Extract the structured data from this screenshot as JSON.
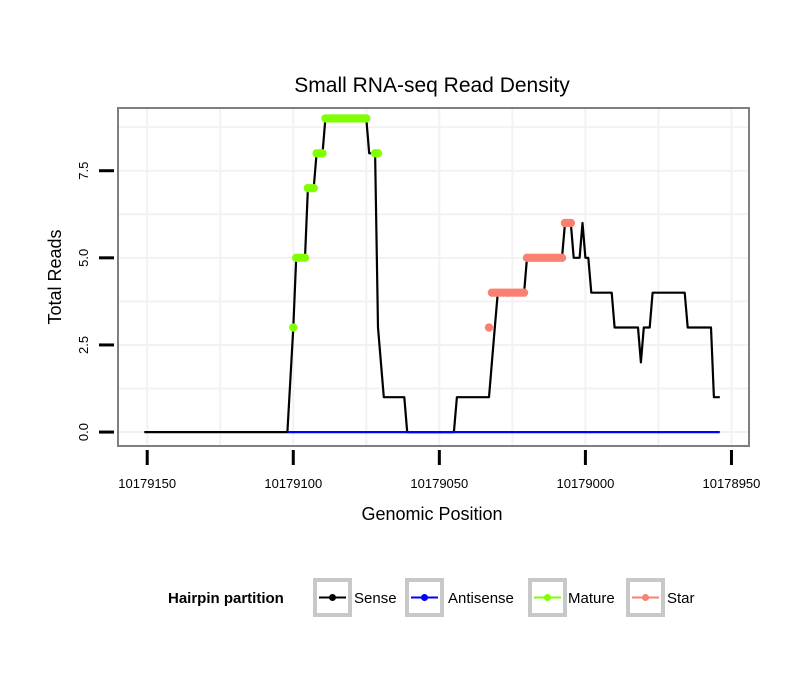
{
  "chart_data": {
    "type": "line",
    "title": "Small RNA-seq Read Density",
    "xlabel": "Genomic Position",
    "ylabel": "Total Reads",
    "x_reversed": true,
    "xlim": [
      10179160,
      10178944
    ],
    "ylim": [
      -0.4,
      9.3
    ],
    "xticks": [
      10179150,
      10179100,
      10179050,
      10179000,
      10178950
    ],
    "xtick_labels": [
      "10179150",
      "10179100",
      "10179050",
      "10179000",
      "10178950"
    ],
    "yticks": [
      0,
      2.5,
      5,
      7.5
    ],
    "ytick_labels": [
      "0.0",
      "2.5",
      "5.0",
      "7.5"
    ],
    "grid": true,
    "legend": {
      "title": "Hairpin partition",
      "position": "bottom",
      "entries": [
        "Sense",
        "Antisense",
        "Mature",
        "Star"
      ]
    },
    "colors": {
      "Sense": "#000000",
      "Antisense": "#0000ff",
      "Mature": "#7fff00",
      "Star": "#fa8072"
    },
    "series": [
      {
        "name": "Sense",
        "style": "line",
        "points": [
          [
            10179151,
            0
          ],
          [
            10179102,
            0
          ],
          [
            10179100,
            3
          ],
          [
            10179099,
            5
          ],
          [
            10179096,
            5
          ],
          [
            10179095,
            7
          ],
          [
            10179093,
            7
          ],
          [
            10179092,
            8
          ],
          [
            10179090,
            8
          ],
          [
            10179089,
            9
          ],
          [
            10179075,
            9
          ],
          [
            10179074,
            8
          ],
          [
            10179072,
            8
          ],
          [
            10179071,
            3
          ],
          [
            10179069,
            1
          ],
          [
            10179062,
            1
          ],
          [
            10179061,
            0
          ],
          [
            10179045,
            0
          ],
          [
            10179044,
            1
          ],
          [
            10179033,
            1
          ],
          [
            10179031,
            3
          ],
          [
            10179030,
            4
          ],
          [
            10179021,
            4
          ],
          [
            10179020,
            5
          ],
          [
            10179008,
            5
          ],
          [
            10179007,
            6
          ],
          [
            10179005,
            6
          ],
          [
            10179004,
            5
          ],
          [
            10179002,
            5
          ],
          [
            10179001,
            6
          ],
          [
            10179000,
            5
          ],
          [
            10178999,
            5
          ],
          [
            10178998,
            4
          ],
          [
            10178991,
            4
          ],
          [
            10178990,
            3
          ],
          [
            10178982,
            3
          ],
          [
            10178981,
            2
          ],
          [
            10178980,
            3
          ],
          [
            10178978,
            3
          ],
          [
            10178977,
            4
          ],
          [
            10178966,
            4
          ],
          [
            10178965,
            3
          ],
          [
            10178957,
            3
          ],
          [
            10178956,
            1
          ],
          [
            10178954,
            1
          ]
        ]
      },
      {
        "name": "Antisense",
        "style": "line",
        "points": [
          [
            10179102,
            0
          ],
          [
            10178954,
            0
          ]
        ]
      },
      {
        "name": "Mature",
        "style": "dots",
        "points": [
          [
            10179100,
            3
          ],
          [
            10179099,
            5
          ],
          [
            10179098,
            5
          ],
          [
            10179097,
            5
          ],
          [
            10179096,
            5
          ],
          [
            10179095,
            7
          ],
          [
            10179094,
            7
          ],
          [
            10179093,
            7
          ],
          [
            10179092,
            8
          ],
          [
            10179091,
            8
          ],
          [
            10179090,
            8
          ],
          [
            10179089,
            9
          ],
          [
            10179088,
            9
          ],
          [
            10179087,
            9
          ],
          [
            10179086,
            9
          ],
          [
            10179085,
            9
          ],
          [
            10179084,
            9
          ],
          [
            10179083,
            9
          ],
          [
            10179082,
            9
          ],
          [
            10179081,
            9
          ],
          [
            10179080,
            9
          ],
          [
            10179079,
            9
          ],
          [
            10179078,
            9
          ],
          [
            10179077,
            9
          ],
          [
            10179076,
            9
          ],
          [
            10179075,
            9
          ],
          [
            10179072,
            8
          ],
          [
            10179071,
            8
          ]
        ]
      },
      {
        "name": "Star",
        "style": "dots",
        "points": [
          [
            10179033,
            3
          ],
          [
            10179032,
            4
          ],
          [
            10179031,
            4
          ],
          [
            10179030,
            4
          ],
          [
            10179029,
            4
          ],
          [
            10179028,
            4
          ],
          [
            10179027,
            4
          ],
          [
            10179026,
            4
          ],
          [
            10179025,
            4
          ],
          [
            10179024,
            4
          ],
          [
            10179023,
            4
          ],
          [
            10179022,
            4
          ],
          [
            10179021,
            4
          ],
          [
            10179020,
            5
          ],
          [
            10179019,
            5
          ],
          [
            10179018,
            5
          ],
          [
            10179017,
            5
          ],
          [
            10179016,
            5
          ],
          [
            10179015,
            5
          ],
          [
            10179014,
            5
          ],
          [
            10179013,
            5
          ],
          [
            10179012,
            5
          ],
          [
            10179011,
            5
          ],
          [
            10179010,
            5
          ],
          [
            10179009,
            5
          ],
          [
            10179008,
            5
          ],
          [
            10179007,
            6
          ],
          [
            10179006,
            6
          ],
          [
            10179005,
            6
          ]
        ]
      }
    ]
  }
}
